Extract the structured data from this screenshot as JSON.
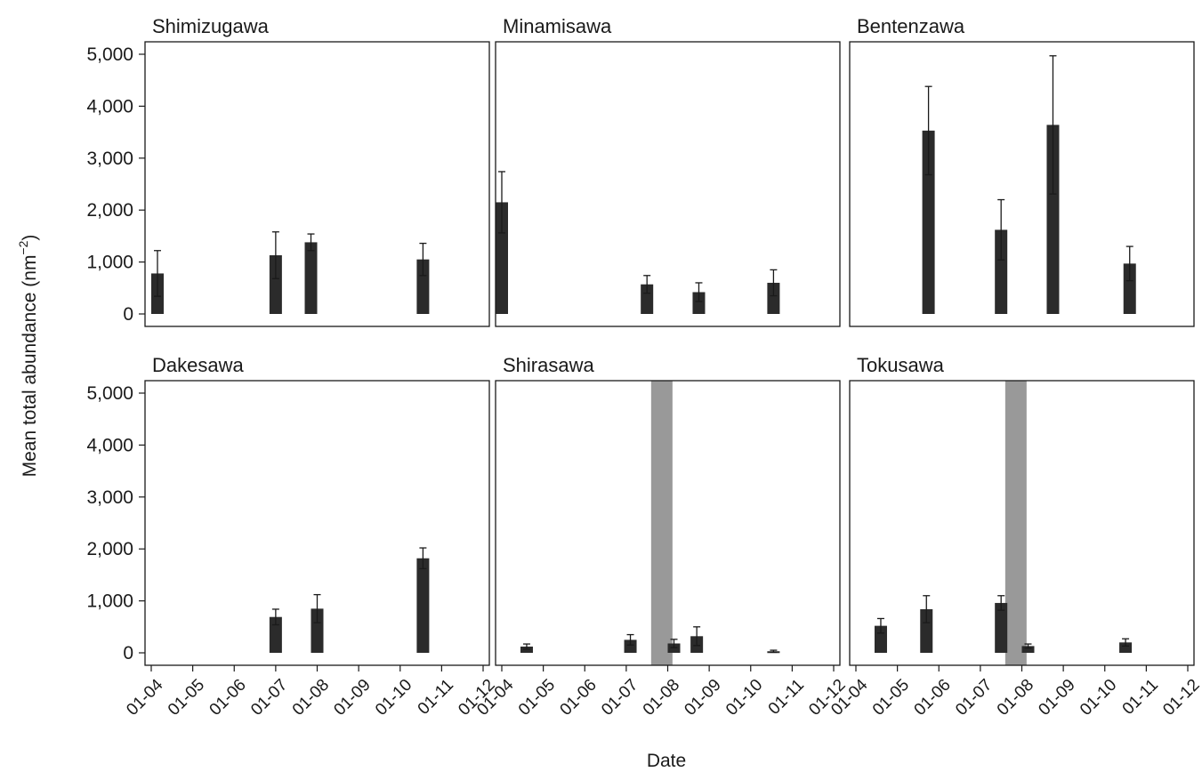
{
  "chart_data": {
    "type": "bar",
    "xlabel": "Date",
    "ylabel_main": "Mean total abundance (nm",
    "ylabel_sup": "−2",
    "ylabel_close": ")",
    "ylim": [
      0,
      5000
    ],
    "yticks": [
      0,
      1000,
      2000,
      3000,
      4000,
      5000
    ],
    "ytick_labels": [
      "0",
      "1,000",
      "2,000",
      "3,000",
      "4,000",
      "5,000"
    ],
    "xlim": [
      3.85,
      12.15
    ],
    "xticks": [
      4,
      5,
      6,
      7,
      8,
      9,
      10,
      11,
      12
    ],
    "xtick_labels": [
      "01-04",
      "01-05",
      "01-06",
      "01-07",
      "01-08",
      "01-09",
      "01-10",
      "01-11",
      "01-12"
    ],
    "bar_color": "#2b2b2b",
    "shade_color": "#999999",
    "panels": [
      {
        "name": "Shimizugawa",
        "bars": [
          {
            "x": 4.15,
            "value": 780,
            "err": 440
          },
          {
            "x": 7.0,
            "value": 1130,
            "err": 450
          },
          {
            "x": 7.85,
            "value": 1380,
            "err": 160
          },
          {
            "x": 10.55,
            "value": 1050,
            "err": 310
          }
        ],
        "shade": null
      },
      {
        "name": "Minamisawa",
        "bars": [
          {
            "x": 4.0,
            "value": 2150,
            "err": 590
          },
          {
            "x": 7.5,
            "value": 570,
            "err": 170
          },
          {
            "x": 8.75,
            "value": 420,
            "err": 180
          },
          {
            "x": 10.55,
            "value": 600,
            "err": 250
          }
        ],
        "shade": null
      },
      {
        "name": "Bentenzawa",
        "bars": [
          {
            "x": 5.75,
            "value": 3530,
            "err": 850
          },
          {
            "x": 7.5,
            "value": 1620,
            "err": 580
          },
          {
            "x": 8.75,
            "value": 3640,
            "err": 1330
          },
          {
            "x": 10.6,
            "value": 970,
            "err": 330
          }
        ],
        "shade": null
      },
      {
        "name": "Dakesawa",
        "bars": [
          {
            "x": 7.0,
            "value": 690,
            "err": 150
          },
          {
            "x": 8.0,
            "value": 850,
            "err": 270
          },
          {
            "x": 10.55,
            "value": 1820,
            "err": 200
          }
        ],
        "shade": null
      },
      {
        "name": "Shirasawa",
        "bars": [
          {
            "x": 4.6,
            "value": 120,
            "err": 50
          },
          {
            "x": 7.1,
            "value": 250,
            "err": 100
          },
          {
            "x": 8.15,
            "value": 180,
            "err": 80
          },
          {
            "x": 8.7,
            "value": 320,
            "err": 180
          },
          {
            "x": 10.55,
            "value": 30,
            "err": 20
          }
        ],
        "shade": [
          7.6,
          8.1
        ]
      },
      {
        "name": "Tokusawa",
        "bars": [
          {
            "x": 4.6,
            "value": 520,
            "err": 140
          },
          {
            "x": 5.7,
            "value": 840,
            "err": 260
          },
          {
            "x": 7.5,
            "value": 960,
            "err": 140
          },
          {
            "x": 8.15,
            "value": 130,
            "err": 40
          },
          {
            "x": 10.5,
            "value": 200,
            "err": 70
          }
        ],
        "shade": [
          7.6,
          8.1
        ]
      }
    ]
  }
}
